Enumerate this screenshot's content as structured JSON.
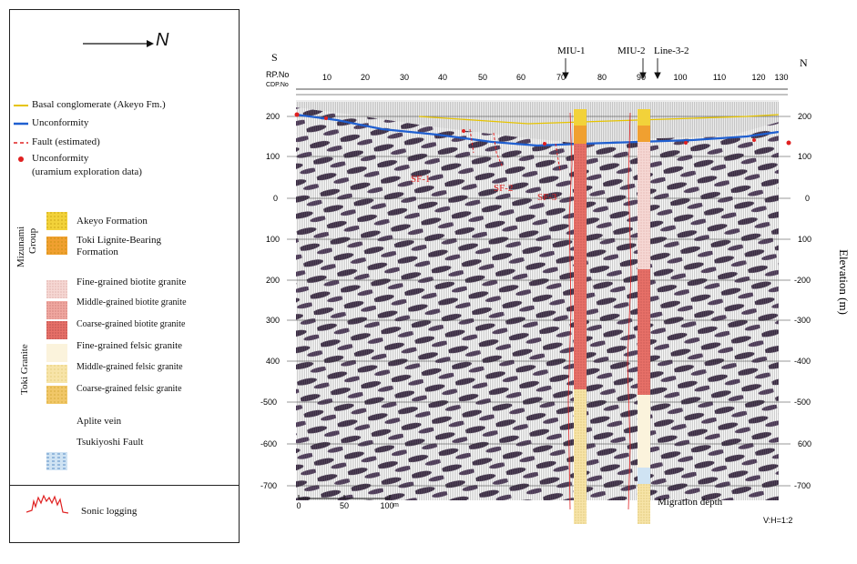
{
  "legend": {
    "north_label": "N",
    "items": [
      {
        "label": "Basal conglomerate (Akeyo Fm.)",
        "color": "#e6c400"
      },
      {
        "label": "Unconformity",
        "color": "#1f5fd0"
      },
      {
        "label": "Fault (estimated)",
        "color": "#e02020"
      },
      {
        "label": "Unconformity",
        "color": "#e02020"
      },
      {
        "label": "(uramium exploration data)"
      }
    ],
    "group_mizunami": "Mizunami\nGroup",
    "group_mizunami_l1": "Mizunami",
    "group_mizunami_l2": "Group",
    "group_toki": "Toki Granite",
    "units": [
      {
        "label": "Akeyo Formation",
        "color": "#f2d23a"
      },
      {
        "label": "Toki Lignite-Bearing",
        "label2": "Formation",
        "color": "#f0a030"
      },
      {
        "label": "Fine-grained biotite granite",
        "color": "#f6d8d4"
      },
      {
        "label": "Middle-grained biotite granite",
        "color": "#f0a8a0"
      },
      {
        "label": "Coarse-grained biotite granite",
        "color": "#e77068"
      },
      {
        "label": "Fine-grained felsic granite",
        "color": "#fbf3dc"
      },
      {
        "label": "Middle-grained felsic granite",
        "color": "#f7e4a8"
      },
      {
        "label": "Coarse-grained felsic granite",
        "color": "#f1c768"
      },
      {
        "label": "Aplite vein",
        "color": "#ffffff"
      },
      {
        "label": "Tsukiyoshi Fault",
        "color": "#cfe3f3"
      }
    ],
    "sonic_label": "Sonic logging"
  },
  "section": {
    "left_dir": "S",
    "right_dir": "N",
    "rp_label": "RP.No",
    "cdp_label": "CDP.No",
    "rp_ticks": [
      "10",
      "20",
      "30",
      "40",
      "50",
      "60",
      "70",
      "80",
      "90",
      "100",
      "110",
      "120",
      "130"
    ],
    "boreholes": [
      {
        "label": "MIU-1"
      },
      {
        "label": "MIU-2"
      },
      {
        "label": "Line-3-2"
      }
    ],
    "faults": [
      "SF-1",
      "SF-2",
      "SF-3"
    ],
    "elev_left": [
      "200",
      "100",
      "0",
      "100",
      "200",
      "300",
      "400",
      "-500",
      "-600",
      "-700"
    ],
    "elev_right": [
      "200",
      "100",
      "0",
      "100",
      "-200",
      "-300",
      "-400",
      "-500",
      "600",
      "-700"
    ],
    "elev_axis_label": "Elevation (m)",
    "scale_ticks": [
      "0",
      "50",
      "100"
    ],
    "scale_unit": "m",
    "migration_label": "Migration depth",
    "ratio_label": "V:H=1:2"
  }
}
